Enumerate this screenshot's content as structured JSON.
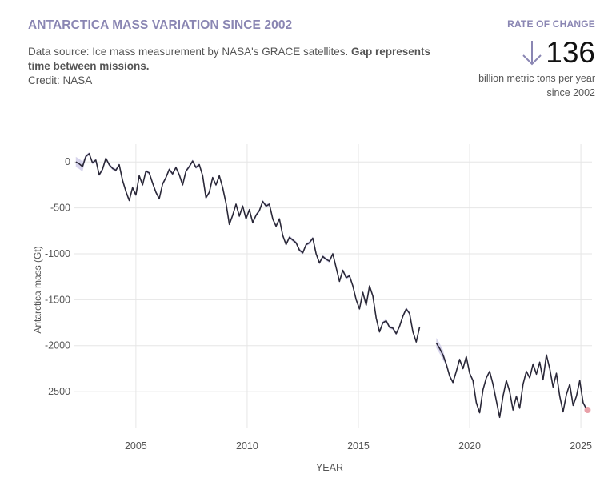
{
  "header": {
    "title": "ANTARCTICA MASS VARIATION SINCE 2002",
    "source_text": "Data source: Ice mass measurement by NASA's GRACE satellites.",
    "source_bold": "Gap represents time between missions.",
    "credit": "Credit: NASA"
  },
  "rate": {
    "label": "RATE OF CHANGE",
    "value": "136",
    "description": "billion metric tons per year since 2002",
    "arrow_icon": "arrow-down-icon"
  },
  "colors": {
    "accent": "#8a86b3",
    "line": "#2a2838",
    "band": "#c9c6e6",
    "marker": "#e8a0a8",
    "grid": "#e6e6e6"
  },
  "chart_data": {
    "type": "line",
    "title": "ANTARCTICA MASS VARIATION SINCE 2002",
    "xlabel": "YEAR",
    "ylabel": "Antarctica mass (Gt)",
    "xlim": [
      2002.2,
      2025.5
    ],
    "ylim": [
      -2900,
      150
    ],
    "x_ticks": [
      2005,
      2010,
      2015,
      2020,
      2025
    ],
    "y_ticks": [
      0,
      -500,
      -1000,
      -1500,
      -2000,
      -2500
    ],
    "grid": true,
    "series": [
      {
        "name": "GRACE",
        "points": [
          [
            2002.3,
            0
          ],
          [
            2002.45,
            -20
          ],
          [
            2002.6,
            -50
          ],
          [
            2002.75,
            60
          ],
          [
            2002.9,
            90
          ],
          [
            2003.05,
            -10
          ],
          [
            2003.2,
            20
          ],
          [
            2003.35,
            -140
          ],
          [
            2003.5,
            -80
          ],
          [
            2003.65,
            40
          ],
          [
            2003.8,
            -30
          ],
          [
            2003.95,
            -70
          ],
          [
            2004.1,
            -90
          ],
          [
            2004.25,
            -30
          ],
          [
            2004.4,
            -200
          ],
          [
            2004.55,
            -320
          ],
          [
            2004.7,
            -420
          ],
          [
            2004.85,
            -280
          ],
          [
            2005.0,
            -360
          ],
          [
            2005.15,
            -150
          ],
          [
            2005.3,
            -250
          ],
          [
            2005.45,
            -100
          ],
          [
            2005.6,
            -120
          ],
          [
            2005.75,
            -230
          ],
          [
            2005.9,
            -330
          ],
          [
            2006.05,
            -400
          ],
          [
            2006.2,
            -240
          ],
          [
            2006.35,
            -170
          ],
          [
            2006.5,
            -80
          ],
          [
            2006.65,
            -130
          ],
          [
            2006.8,
            -60
          ],
          [
            2006.95,
            -140
          ],
          [
            2007.1,
            -250
          ],
          [
            2007.25,
            -100
          ],
          [
            2007.4,
            -50
          ],
          [
            2007.55,
            10
          ],
          [
            2007.7,
            -60
          ],
          [
            2007.85,
            -30
          ],
          [
            2008.0,
            -150
          ],
          [
            2008.15,
            -390
          ],
          [
            2008.3,
            -330
          ],
          [
            2008.45,
            -170
          ],
          [
            2008.6,
            -250
          ],
          [
            2008.75,
            -150
          ],
          [
            2008.9,
            -280
          ],
          [
            2009.05,
            -450
          ],
          [
            2009.2,
            -680
          ],
          [
            2009.35,
            -580
          ],
          [
            2009.5,
            -460
          ],
          [
            2009.65,
            -590
          ],
          [
            2009.8,
            -480
          ],
          [
            2009.95,
            -620
          ],
          [
            2010.1,
            -520
          ],
          [
            2010.25,
            -660
          ],
          [
            2010.4,
            -580
          ],
          [
            2010.55,
            -530
          ],
          [
            2010.7,
            -430
          ],
          [
            2010.85,
            -480
          ],
          [
            2011.0,
            -460
          ],
          [
            2011.15,
            -620
          ],
          [
            2011.3,
            -700
          ],
          [
            2011.45,
            -620
          ],
          [
            2011.6,
            -800
          ],
          [
            2011.75,
            -900
          ],
          [
            2011.9,
            -820
          ],
          [
            2012.05,
            -850
          ],
          [
            2012.2,
            -880
          ],
          [
            2012.35,
            -960
          ],
          [
            2012.5,
            -990
          ],
          [
            2012.65,
            -900
          ],
          [
            2012.8,
            -880
          ],
          [
            2012.95,
            -830
          ],
          [
            2013.1,
            -1000
          ],
          [
            2013.25,
            -1100
          ],
          [
            2013.4,
            -1030
          ],
          [
            2013.55,
            -1060
          ],
          [
            2013.7,
            -1080
          ],
          [
            2013.85,
            -1000
          ],
          [
            2014.0,
            -1150
          ],
          [
            2014.15,
            -1300
          ],
          [
            2014.3,
            -1180
          ],
          [
            2014.45,
            -1260
          ],
          [
            2014.6,
            -1240
          ],
          [
            2014.75,
            -1350
          ],
          [
            2014.9,
            -1500
          ],
          [
            2015.05,
            -1600
          ],
          [
            2015.2,
            -1420
          ],
          [
            2015.35,
            -1560
          ],
          [
            2015.5,
            -1350
          ],
          [
            2015.65,
            -1460
          ],
          [
            2015.8,
            -1700
          ],
          [
            2015.95,
            -1850
          ],
          [
            2016.1,
            -1750
          ],
          [
            2016.25,
            -1730
          ],
          [
            2016.4,
            -1800
          ],
          [
            2016.55,
            -1810
          ],
          [
            2016.7,
            -1870
          ],
          [
            2016.85,
            -1790
          ],
          [
            2017.0,
            -1680
          ],
          [
            2017.15,
            -1600
          ],
          [
            2017.3,
            -1650
          ],
          [
            2017.45,
            -1850
          ],
          [
            2017.6,
            -1960
          ],
          [
            2017.75,
            -1800
          ]
        ],
        "gap": [
          2017.75,
          2018.5
        ],
        "points_fo": [
          [
            2018.5,
            -1970
          ],
          [
            2018.65,
            -2030
          ],
          [
            2018.8,
            -2100
          ],
          [
            2018.95,
            -2200
          ],
          [
            2019.1,
            -2330
          ],
          [
            2019.25,
            -2400
          ],
          [
            2019.4,
            -2280
          ],
          [
            2019.55,
            -2150
          ],
          [
            2019.7,
            -2250
          ],
          [
            2019.85,
            -2120
          ],
          [
            2020.0,
            -2300
          ],
          [
            2020.15,
            -2380
          ],
          [
            2020.3,
            -2620
          ],
          [
            2020.45,
            -2730
          ],
          [
            2020.6,
            -2480
          ],
          [
            2020.75,
            -2350
          ],
          [
            2020.9,
            -2280
          ],
          [
            2021.05,
            -2420
          ],
          [
            2021.2,
            -2600
          ],
          [
            2021.35,
            -2780
          ],
          [
            2021.5,
            -2550
          ],
          [
            2021.65,
            -2380
          ],
          [
            2021.8,
            -2500
          ],
          [
            2021.95,
            -2700
          ],
          [
            2022.1,
            -2550
          ],
          [
            2022.25,
            -2680
          ],
          [
            2022.4,
            -2420
          ],
          [
            2022.55,
            -2280
          ],
          [
            2022.7,
            -2350
          ],
          [
            2022.85,
            -2200
          ],
          [
            2023.0,
            -2310
          ],
          [
            2023.15,
            -2180
          ],
          [
            2023.3,
            -2370
          ],
          [
            2023.45,
            -2100
          ],
          [
            2023.6,
            -2250
          ],
          [
            2023.75,
            -2450
          ],
          [
            2023.9,
            -2300
          ],
          [
            2024.05,
            -2550
          ],
          [
            2024.2,
            -2720
          ],
          [
            2024.35,
            -2530
          ],
          [
            2024.5,
            -2420
          ],
          [
            2024.65,
            -2650
          ],
          [
            2024.8,
            -2550
          ],
          [
            2024.95,
            -2380
          ],
          [
            2025.1,
            -2620
          ],
          [
            2025.25,
            -2690
          ]
        ],
        "latest": [
          2025.3,
          -2700
        ]
      }
    ]
  }
}
